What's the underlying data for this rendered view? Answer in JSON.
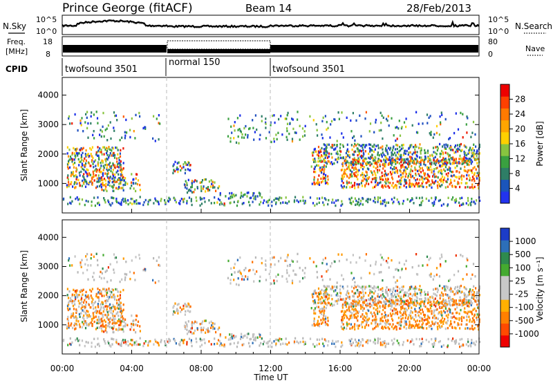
{
  "header": {
    "station": "Prince George (fitACF)",
    "beam": "Beam 14",
    "date": "28/Feb/2013"
  },
  "noise_panel": {
    "left_label": "N.Sky",
    "right_label": "N.Search",
    "ticks": [
      "10^5",
      "10^0"
    ]
  },
  "freq_panel": {
    "left_label_line1": "Freq.",
    "left_label_line2": "[MHz]",
    "left_ticks": [
      "18",
      "8"
    ],
    "right_label": "Nave",
    "right_ticks": [
      "80",
      "0"
    ]
  },
  "cpid_panel": {
    "label": "CPID",
    "segments": [
      {
        "start": 0,
        "end": 6,
        "text": "twofsound 3501"
      },
      {
        "start": 6,
        "end": 12,
        "text": "normal 150"
      },
      {
        "start": 12,
        "end": 24,
        "text": "twofsound 3501"
      }
    ]
  },
  "chart_data": [
    {
      "type": "heatmap",
      "title": "Power",
      "ylabel": "Slant Range [km]",
      "xlabel": "",
      "xlim": [
        0,
        24
      ],
      "ylim": [
        0,
        4600
      ],
      "yticks": [
        "1000",
        "2000",
        "3000",
        "4000"
      ],
      "colorbar": {
        "label": "Power [dB]",
        "ticks": [
          "4",
          "8",
          "12",
          "16",
          "20",
          "24",
          "28"
        ],
        "colors": [
          "#2233ee",
          "#1b55bb",
          "#2e7e66",
          "#3aa040",
          "#88c440",
          "#ffd000",
          "#ffa500",
          "#ff7a00",
          "#ff4000",
          "#ee0000"
        ]
      },
      "gaps_dashed_at_hours": [
        6,
        12
      ]
    },
    {
      "type": "heatmap",
      "title": "Velocity",
      "ylabel": "Slant Range [km]",
      "xlabel": "Time UT",
      "xlim": [
        0,
        24
      ],
      "ylim": [
        0,
        4600
      ],
      "yticks": [
        "1000",
        "2000",
        "3000",
        "4000"
      ],
      "xticks": [
        "00:00",
        "04:00",
        "08:00",
        "12:00",
        "16:00",
        "20:00",
        "00:00"
      ],
      "colorbar": {
        "label": "Velocity [m s⁻¹]",
        "ticks": [
          "1000",
          "500",
          "100",
          "25",
          "-25",
          "-100",
          "-500",
          "-1000"
        ],
        "colors": [
          "#1c3cc8",
          "#2d6fb8",
          "#2e8a4e",
          "#44aa30",
          "#c8c8c8",
          "#c8c8c8",
          "#ffb000",
          "#ff8000",
          "#ff4a00",
          "#ee0000"
        ]
      },
      "gaps_dashed_at_hours": [
        6,
        12
      ]
    }
  ],
  "palette": {
    "power_scatter": [
      "#1a2ee8",
      "#1f4fc0",
      "#2e7e66",
      "#3aa040",
      "#88c440",
      "#ffd000",
      "#ff9400",
      "#ff5a00",
      "#ee1a00"
    ],
    "velocity_scatter": [
      "#c4c4c4",
      "#b8b8b8",
      "#ff9a00",
      "#ff7000",
      "#44aa30",
      "#2e8a4e",
      "#2d6fb8",
      "#ee3000"
    ]
  }
}
